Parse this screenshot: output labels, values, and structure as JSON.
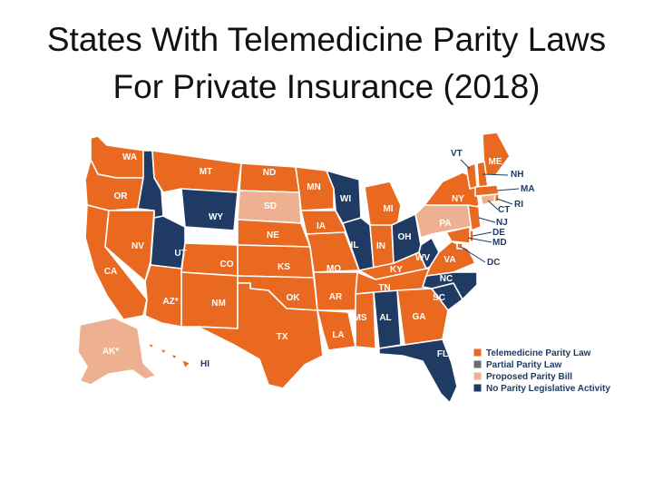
{
  "title": {
    "line1": "States With Telemedicine Parity Laws",
    "line2": "For Private Insurance (2018)"
  },
  "colors": {
    "parity_law": "#e8691f",
    "partial_parity_law": "#6e6e6e",
    "proposed_parity_bill": "#edb191",
    "no_parity_activity": "#1f3b63"
  },
  "legend": [
    {
      "label": "Telemedicine Parity Law",
      "status": "parity_law"
    },
    {
      "label": "Partial Parity Law",
      "status": "partial_parity_law"
    },
    {
      "label": "Proposed Parity Bill",
      "status": "proposed_parity_bill"
    },
    {
      "label": "No Parity Legislative Activity",
      "status": "no_parity_activity"
    }
  ],
  "states": [
    {
      "label": "WA",
      "status": "parity_law"
    },
    {
      "label": "OR",
      "status": "parity_law"
    },
    {
      "label": "CA",
      "status": "parity_law"
    },
    {
      "label": "NV",
      "status": "parity_law"
    },
    {
      "label": "ID",
      "status": "no_parity_activity"
    },
    {
      "label": "MT",
      "status": "parity_law"
    },
    {
      "label": "WY",
      "status": "no_parity_activity"
    },
    {
      "label": "UT",
      "status": "no_parity_activity"
    },
    {
      "label": "AZ*",
      "status": "parity_law"
    },
    {
      "label": "CO",
      "status": "parity_law"
    },
    {
      "label": "NM",
      "status": "parity_law"
    },
    {
      "label": "ND",
      "status": "parity_law"
    },
    {
      "label": "SD",
      "status": "proposed_parity_bill"
    },
    {
      "label": "NE",
      "status": "parity_law"
    },
    {
      "label": "KS",
      "status": "parity_law"
    },
    {
      "label": "OK",
      "status": "parity_law"
    },
    {
      "label": "TX",
      "status": "parity_law"
    },
    {
      "label": "MN",
      "status": "parity_law"
    },
    {
      "label": "IA",
      "status": "parity_law"
    },
    {
      "label": "MO",
      "status": "parity_law"
    },
    {
      "label": "AR",
      "status": "parity_law"
    },
    {
      "label": "LA",
      "status": "parity_law"
    },
    {
      "label": "WI",
      "status": "no_parity_activity"
    },
    {
      "label": "IL",
      "status": "no_parity_activity"
    },
    {
      "label": "MS",
      "status": "parity_law"
    },
    {
      "label": "AL",
      "status": "no_parity_activity"
    },
    {
      "label": "MI",
      "status": "parity_law"
    },
    {
      "label": "IN",
      "status": "parity_law"
    },
    {
      "label": "KY",
      "status": "parity_law"
    },
    {
      "label": "TN",
      "status": "parity_law"
    },
    {
      "label": "OH",
      "status": "no_parity_activity"
    },
    {
      "label": "WV",
      "status": "no_parity_activity"
    },
    {
      "label": "GA",
      "status": "parity_law"
    },
    {
      "label": "FL",
      "status": "no_parity_activity"
    },
    {
      "label": "SC",
      "status": "no_parity_activity"
    },
    {
      "label": "NC",
      "status": "no_parity_activity"
    },
    {
      "label": "VA",
      "status": "parity_law"
    },
    {
      "label": "PA",
      "status": "proposed_parity_bill"
    },
    {
      "label": "NY",
      "status": "parity_law"
    },
    {
      "label": "ME",
      "status": "parity_law"
    },
    {
      "label": "VT",
      "status": "parity_law"
    },
    {
      "label": "NH",
      "status": "parity_law"
    },
    {
      "label": "MA",
      "status": "parity_law"
    },
    {
      "label": "RI",
      "status": "parity_law"
    },
    {
      "label": "CT",
      "status": "proposed_parity_bill"
    },
    {
      "label": "NJ",
      "status": "parity_law"
    },
    {
      "label": "DE",
      "status": "parity_law"
    },
    {
      "label": "MD",
      "status": "parity_law"
    },
    {
      "label": "DC",
      "status": "parity_law"
    },
    {
      "label": "AK*",
      "status": "proposed_parity_bill"
    },
    {
      "label": "HI",
      "status": "parity_law"
    }
  ]
}
